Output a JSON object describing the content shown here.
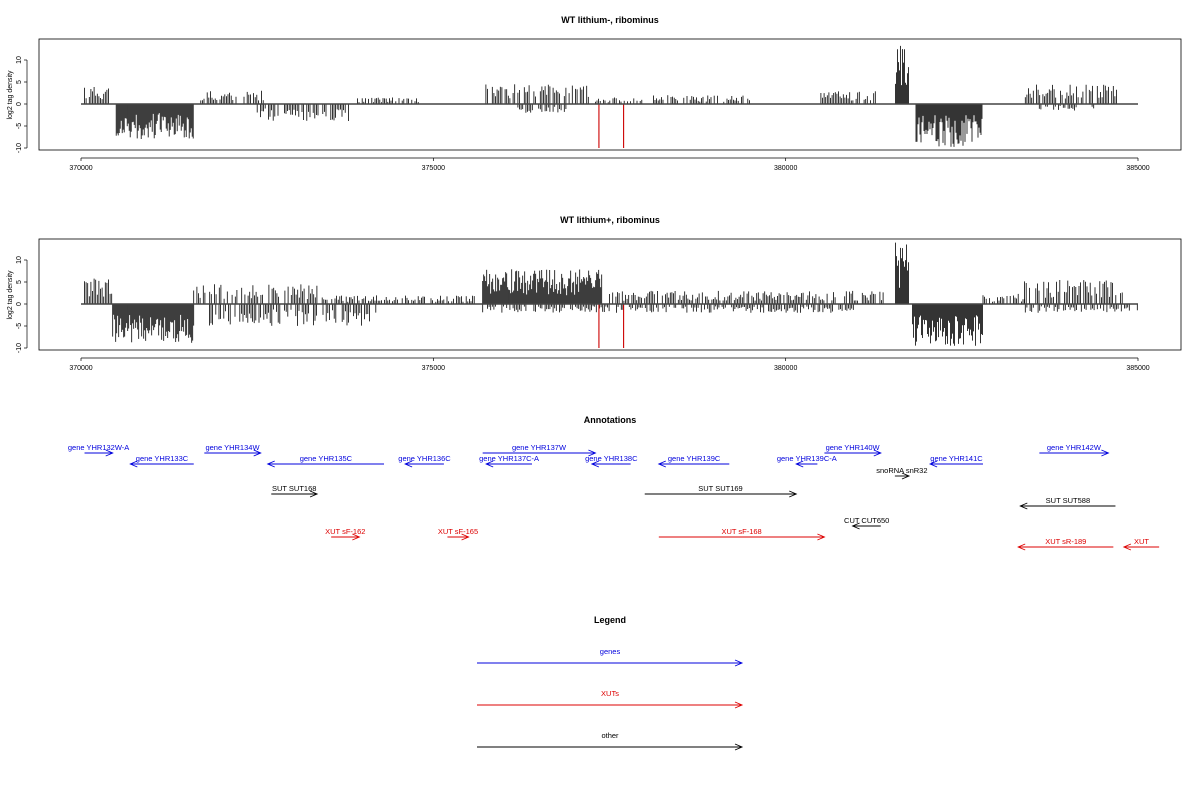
{
  "chart_data": [
    {
      "type": "bar",
      "title": "WT lithium-, ribominus",
      "ylabel": "log2 tag density",
      "xlim": [
        370000,
        385000
      ],
      "ylim": [
        -10,
        14
      ],
      "x_ticks": [
        370000,
        375000,
        380000,
        385000
      ],
      "x_tick_labels": [
        "370000",
        "375000",
        "380000",
        "385000"
      ],
      "y_ticks": [
        -10,
        -5,
        0,
        5,
        10
      ],
      "y_tick_labels": [
        "-10",
        "-5",
        "0",
        "5",
        "10"
      ],
      "series_colors": {
        "signal": "#000000",
        "highlight": "#cc0000"
      },
      "signal_regions": [
        {
          "start": 370050,
          "end": 370450,
          "max": 4
        },
        {
          "start": 370500,
          "end": 371600,
          "max": -8
        },
        {
          "start": 371700,
          "end": 372600,
          "max": 3
        },
        {
          "start": 372500,
          "end": 373800,
          "max": -4
        },
        {
          "start": 373900,
          "end": 374800,
          "max": 1.5
        },
        {
          "start": 375700,
          "end": 377200,
          "max": 4.5
        },
        {
          "start": 376200,
          "end": 376900,
          "max": -2
        },
        {
          "start": 377300,
          "end": 378000,
          "max": 1.5
        },
        {
          "start": 378100,
          "end": 379500,
          "max": 2
        },
        {
          "start": 380500,
          "end": 381300,
          "max": 3
        },
        {
          "start": 381560,
          "end": 381750,
          "max": 13.5
        },
        {
          "start": 381850,
          "end": 382800,
          "max": -10
        },
        {
          "start": 383400,
          "end": 384700,
          "max": 4.5
        },
        {
          "start": 383600,
          "end": 384400,
          "max": -1.5
        }
      ],
      "highlight_bars": [
        {
          "x": 377350,
          "y": -10
        },
        {
          "x": 377700,
          "y": -10
        }
      ]
    },
    {
      "type": "bar",
      "title": "WT lithium+, ribominus",
      "ylabel": "log2 tag density",
      "xlim": [
        370000,
        385000
      ],
      "ylim": [
        -10,
        14
      ],
      "x_ticks": [
        370000,
        375000,
        380000,
        385000
      ],
      "x_tick_labels": [
        "370000",
        "375000",
        "380000",
        "385000"
      ],
      "y_ticks": [
        -10,
        -5,
        0,
        5,
        10
      ],
      "y_tick_labels": [
        "-10",
        "-5",
        "0",
        "5",
        "10"
      ],
      "series_colors": {
        "signal": "#000000",
        "highlight": "#cc0000"
      },
      "signal_regions": [
        {
          "start": 370050,
          "end": 370450,
          "max": 6
        },
        {
          "start": 370450,
          "end": 371600,
          "max": -9
        },
        {
          "start": 371600,
          "end": 373400,
          "max": 4.5
        },
        {
          "start": 371800,
          "end": 374200,
          "max": -5
        },
        {
          "start": 373400,
          "end": 375600,
          "max": 2
        },
        {
          "start": 375700,
          "end": 377400,
          "max": 8
        },
        {
          "start": 375700,
          "end": 377500,
          "max": -2
        },
        {
          "start": 377500,
          "end": 381400,
          "max": 3
        },
        {
          "start": 377600,
          "end": 381000,
          "max": -2
        },
        {
          "start": 381560,
          "end": 381750,
          "max": 14
        },
        {
          "start": 381800,
          "end": 382800,
          "max": -9.5
        },
        {
          "start": 382800,
          "end": 383400,
          "max": 2
        },
        {
          "start": 383300,
          "end": 384800,
          "max": 5.5
        },
        {
          "start": 383400,
          "end": 385000,
          "max": -2
        }
      ],
      "highlight_bars": [
        {
          "x": 377350,
          "y": -10
        },
        {
          "x": 377700,
          "y": -10
        }
      ]
    }
  ],
  "annotations": {
    "title": "Annotations",
    "colors": {
      "genes": "#0000dd",
      "xuts": "#dd0000",
      "other": "#000000"
    },
    "features": [
      {
        "label": "gene YHR132W-A",
        "kind": "genes",
        "start": 370050,
        "end": 370450,
        "strand": "+",
        "row": 0
      },
      {
        "label": "gene YHR133C",
        "kind": "genes",
        "start": 370700,
        "end": 371600,
        "strand": "-",
        "row": 1
      },
      {
        "label": "gene YHR134W",
        "kind": "genes",
        "start": 371750,
        "end": 372550,
        "strand": "+",
        "row": 0
      },
      {
        "label": "gene YHR135C",
        "kind": "genes",
        "start": 372650,
        "end": 374300,
        "strand": "-",
        "row": 1
      },
      {
        "label": "gene YHR136C",
        "kind": "genes",
        "start": 374600,
        "end": 375150,
        "strand": "-",
        "row": 1
      },
      {
        "label": "gene YHR137W",
        "kind": "genes",
        "start": 375700,
        "end": 377300,
        "strand": "+",
        "row": 0
      },
      {
        "label": "gene YHR137C-A",
        "kind": "genes",
        "start": 375750,
        "end": 376400,
        "strand": "-",
        "row": 1
      },
      {
        "label": "gene YHR138C",
        "kind": "genes",
        "start": 377250,
        "end": 377800,
        "strand": "-",
        "row": 1
      },
      {
        "label": "gene YHR139C",
        "kind": "genes",
        "start": 378200,
        "end": 379200,
        "strand": "-",
        "row": 1
      },
      {
        "label": "gene YHR139C-A",
        "kind": "genes",
        "start": 380150,
        "end": 380450,
        "strand": "-",
        "row": 1
      },
      {
        "label": "gene YHR140W",
        "kind": "genes",
        "start": 380550,
        "end": 381350,
        "strand": "+",
        "row": 0
      },
      {
        "label": "gene YHR141C",
        "kind": "genes",
        "start": 382050,
        "end": 382800,
        "strand": "-",
        "row": 1
      },
      {
        "label": "gene YHR142W",
        "kind": "genes",
        "start": 383600,
        "end": 384580,
        "strand": "+",
        "row": 0
      },
      {
        "label": "snoRNA snR32",
        "kind": "other",
        "start": 381550,
        "end": 381750,
        "strand": "+",
        "row": 2
      },
      {
        "label": "SUT SUT168",
        "kind": "other",
        "start": 372700,
        "end": 373350,
        "strand": "+",
        "row": 3
      },
      {
        "label": "SUT SUT169",
        "kind": "other",
        "start": 378000,
        "end": 380150,
        "strand": "+",
        "row": 3
      },
      {
        "label": "SUT SUT588",
        "kind": "other",
        "start": 383330,
        "end": 384680,
        "strand": "-",
        "row": 4
      },
      {
        "label": "CUT CUT650",
        "kind": "other",
        "start": 380950,
        "end": 381350,
        "strand": "-",
        "row": 5
      },
      {
        "label": "XUT sF-162",
        "kind": "xuts",
        "start": 373550,
        "end": 373950,
        "strand": "+",
        "row": 6
      },
      {
        "label": "XUT sF-165",
        "kind": "xuts",
        "start": 375200,
        "end": 375500,
        "strand": "+",
        "row": 6
      },
      {
        "label": "XUT sF-168",
        "kind": "xuts",
        "start": 378200,
        "end": 380550,
        "strand": "+",
        "row": 7
      },
      {
        "label": "XUT sR-189",
        "kind": "xuts",
        "start": 383300,
        "end": 384650,
        "strand": "-",
        "row": 8
      },
      {
        "label": "XUT",
        "kind": "xuts",
        "start": 384800,
        "end": 385300,
        "strand": "-",
        "row": 8
      }
    ]
  },
  "legend": {
    "title": "Legend",
    "items": [
      {
        "label": "genes",
        "color": "#0000dd"
      },
      {
        "label": "XUTs",
        "color": "#dd0000"
      },
      {
        "label": "other",
        "color": "#000000"
      }
    ]
  }
}
